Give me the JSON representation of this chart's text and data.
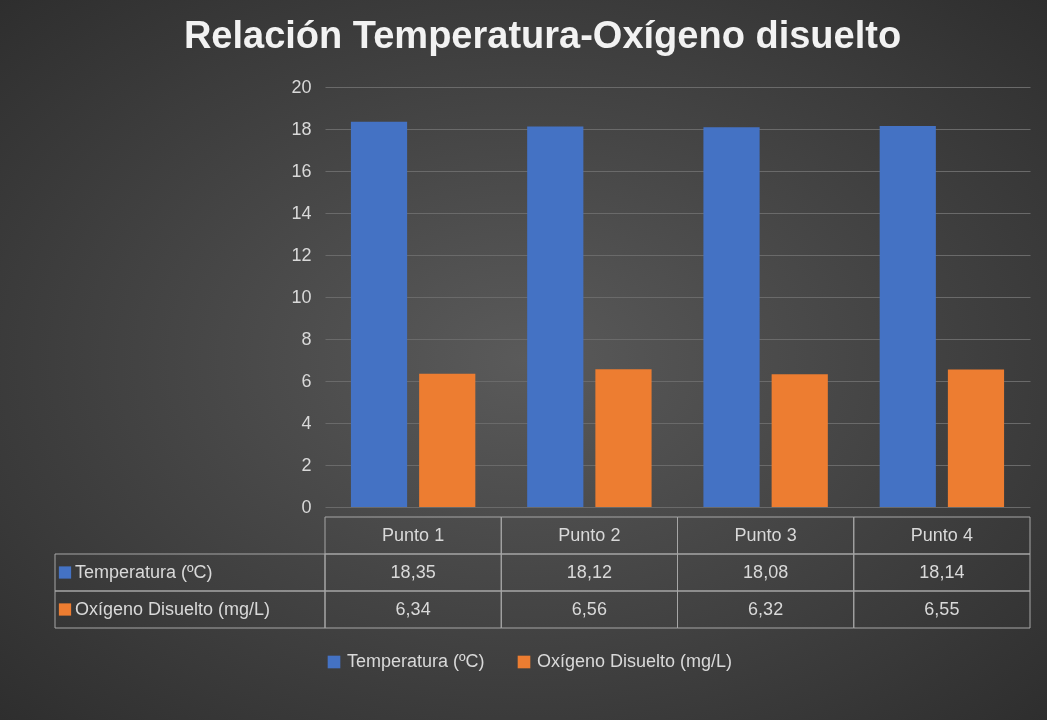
{
  "chart_data": {
    "type": "bar",
    "title": "Relación Temperatura-Oxígeno disuelto",
    "categories": [
      "Punto 1",
      "Punto 2",
      "Punto 3",
      "Punto 4"
    ],
    "series": [
      {
        "name": "Temperatura (ºC)",
        "color": "#4472c4",
        "values": [
          18.35,
          18.12,
          18.08,
          18.14
        ],
        "value_labels": [
          "18,35",
          "18,12",
          "18,08",
          "18,14"
        ]
      },
      {
        "name": "Oxígeno Disuelto (mg/L)",
        "color": "#ed7d31",
        "values": [
          6.34,
          6.56,
          6.32,
          6.55
        ],
        "value_labels": [
          "6,34",
          "6,56",
          "6,32",
          "6,55"
        ]
      }
    ],
    "ylim": [
      0,
      20
    ],
    "yticks": [
      0,
      2,
      4,
      6,
      8,
      10,
      12,
      14,
      16,
      18,
      20
    ],
    "grid": "y",
    "legend": "bottom"
  }
}
